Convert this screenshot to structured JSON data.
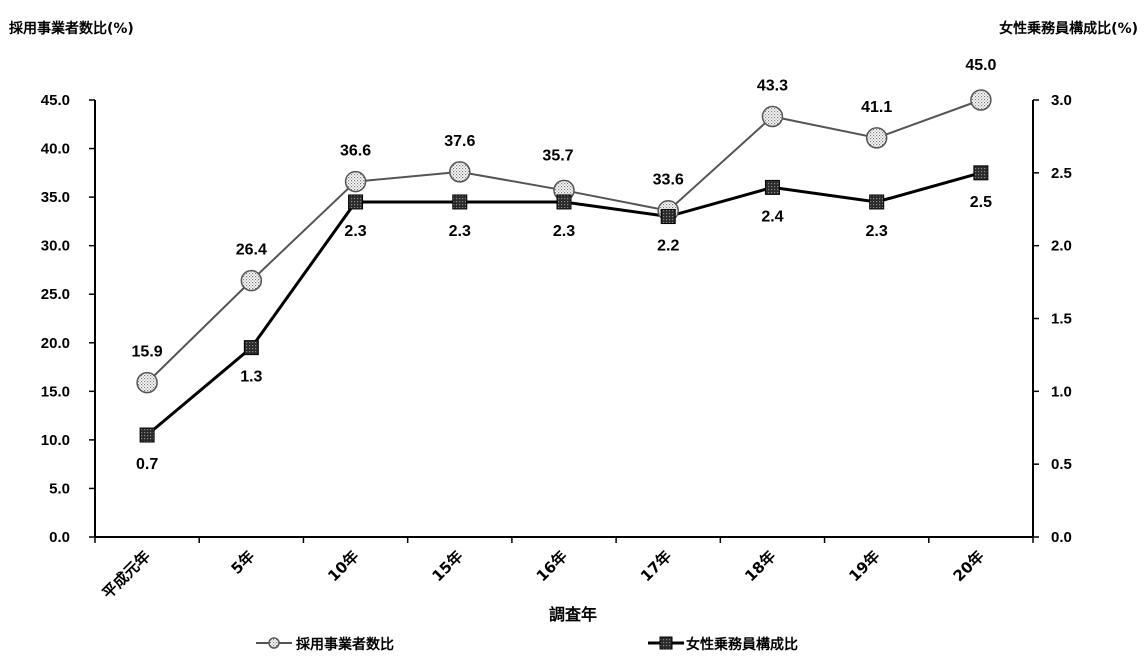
{
  "chart_data": {
    "type": "line",
    "categories": [
      "平成元年",
      "5年",
      "10年",
      "15年",
      "16年",
      "17年",
      "18年",
      "19年",
      "20年"
    ],
    "xlabel": "調査年",
    "y_left": {
      "label": "採用事業者数比(%)",
      "range": [
        0,
        45
      ],
      "ticks": [
        "0.0",
        "5.0",
        "10.0",
        "15.0",
        "20.0",
        "25.0",
        "30.0",
        "35.0",
        "40.0",
        "45.0"
      ]
    },
    "y_right": {
      "label": "女性乗務員構成比(%)",
      "range": [
        0,
        3
      ],
      "ticks": [
        "0.0",
        "0.5",
        "1.0",
        "1.5",
        "2.0",
        "2.5",
        "3.0"
      ]
    },
    "grid": false,
    "legend_position": "bottom",
    "series": [
      {
        "name": "採用事業者数比",
        "axis": "left",
        "marker": "circle",
        "color": "#555555",
        "values": [
          15.9,
          26.4,
          36.6,
          37.6,
          35.7,
          33.6,
          43.3,
          41.1,
          45.0
        ],
        "labels": [
          "15.9",
          "26.4",
          "36.6",
          "37.6",
          "35.7",
          "33.6",
          "43.3",
          "41.1",
          "45.0"
        ]
      },
      {
        "name": "女性乗務員構成比",
        "axis": "right",
        "marker": "square",
        "color": "#000000",
        "values": [
          0.7,
          1.3,
          2.3,
          2.3,
          2.3,
          2.2,
          2.4,
          2.3,
          2.5
        ],
        "labels": [
          "0.7",
          "1.3",
          "2.3",
          "2.3",
          "2.3",
          "2.2",
          "2.4",
          "2.3",
          "2.5"
        ]
      }
    ]
  }
}
